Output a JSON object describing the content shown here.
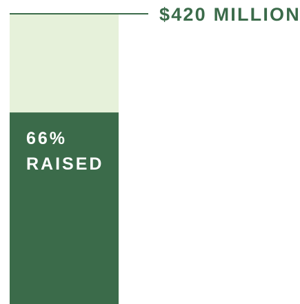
{
  "chart_data": {
    "type": "bar",
    "unit": "%",
    "goal_label": "$420 MILLION",
    "raised_percent": 66,
    "raised_label_line1": "66%",
    "raised_label_line2": "RAISED",
    "ylim": [
      0,
      100
    ],
    "colors": {
      "raised": "#3b6b4a",
      "remaining": "#e6f1da",
      "goal_text": "#3b6b4a",
      "goal_line": "#3b6b4a",
      "raised_text": "#ffffff"
    }
  }
}
